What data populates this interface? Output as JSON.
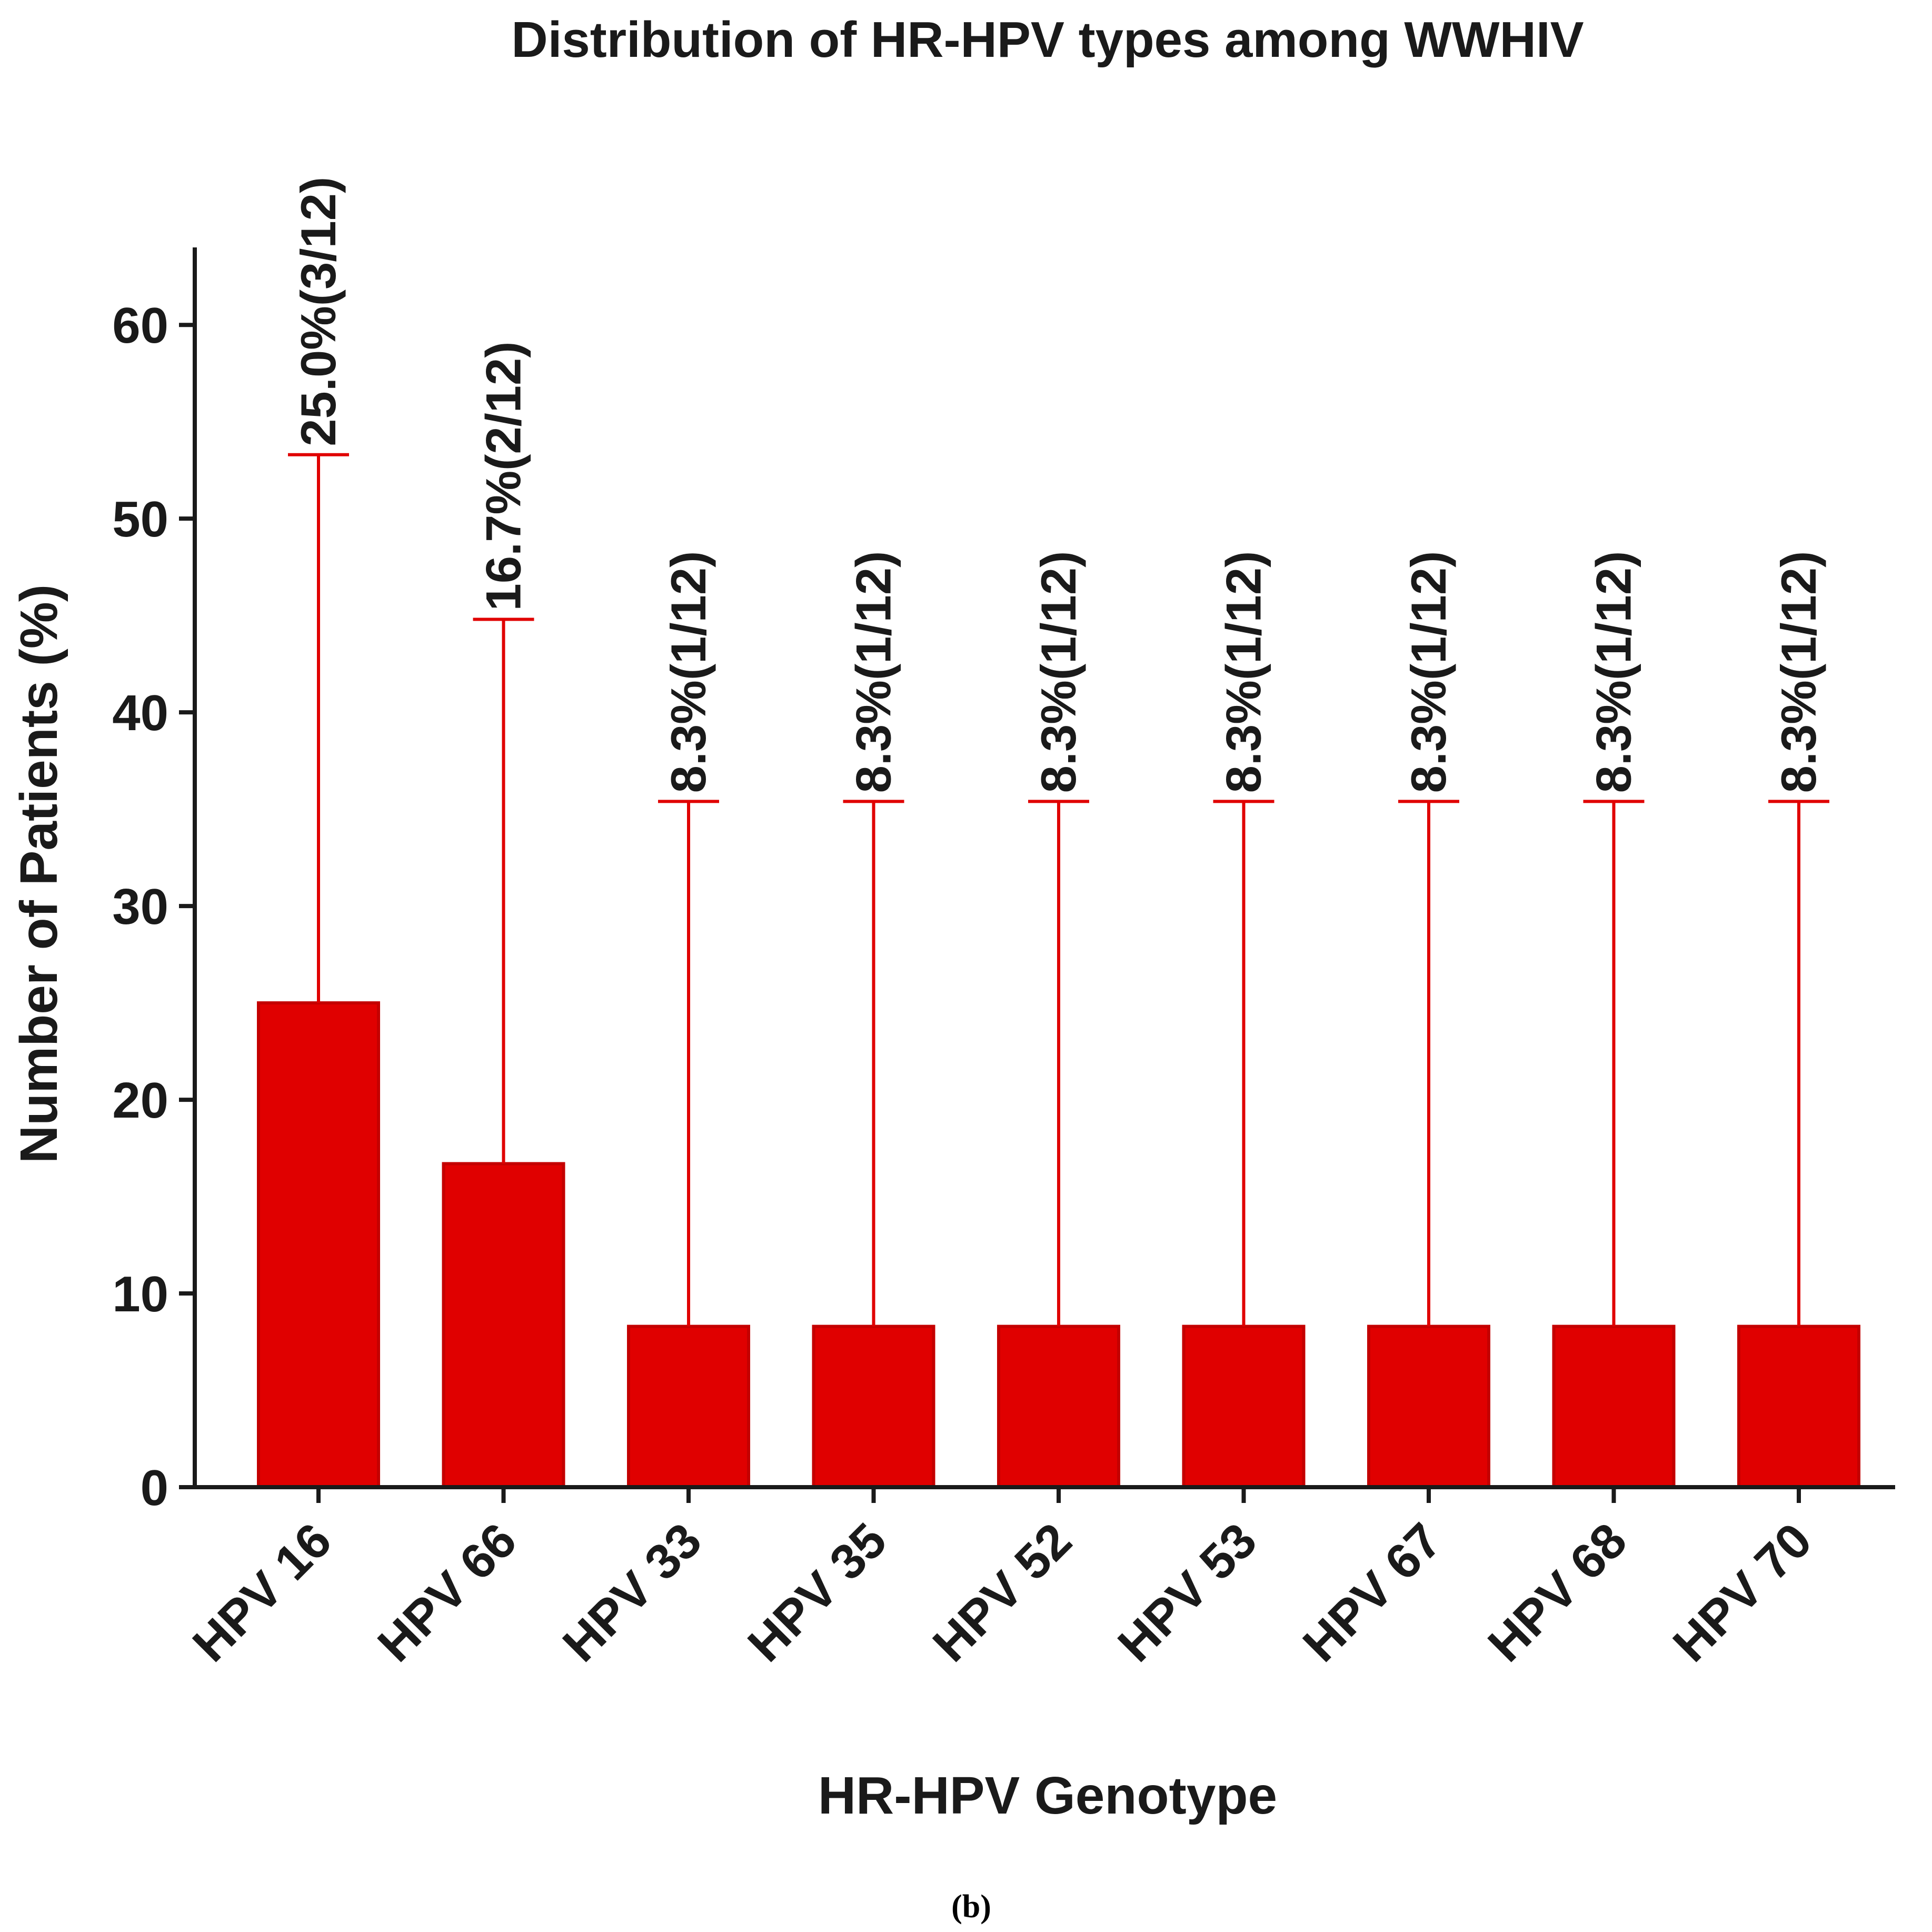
{
  "chart_data": {
    "type": "bar",
    "title": "Distribution of HR-HPV types among WWHIV",
    "xlabel": "HR-HPV Genotype",
    "ylabel": "Number of Patients (%)",
    "ylim": [
      0,
      64
    ],
    "yticks": [
      0,
      10,
      20,
      30,
      40,
      50,
      60
    ],
    "categories": [
      "HPV 16",
      "HPV 66",
      "HPV 33",
      "HPV 35",
      "HPV 52",
      "HPV 53",
      "HPV 67",
      "HPV 68",
      "HPV 70"
    ],
    "values": [
      25.0,
      16.7,
      8.3,
      8.3,
      8.3,
      8.3,
      8.3,
      8.3,
      8.3
    ],
    "error_upper": [
      53.3,
      44.8,
      35.4,
      35.4,
      35.4,
      35.4,
      35.4,
      35.4,
      35.4
    ],
    "data_labels": [
      "25.0%(3/12)",
      "16.7%(2/12)",
      "8.3%(1/12)",
      "8.3%(1/12)",
      "8.3%(1/12)",
      "8.3%(1/12)",
      "8.3%(1/12)",
      "8.3%(1/12)",
      "8.3%(1/12)"
    ],
    "bar_color": "#e00000",
    "error_color": "#e00000",
    "axis_color": "#1a1a1a",
    "grid": false,
    "legend": "none"
  },
  "caption": "(b)"
}
